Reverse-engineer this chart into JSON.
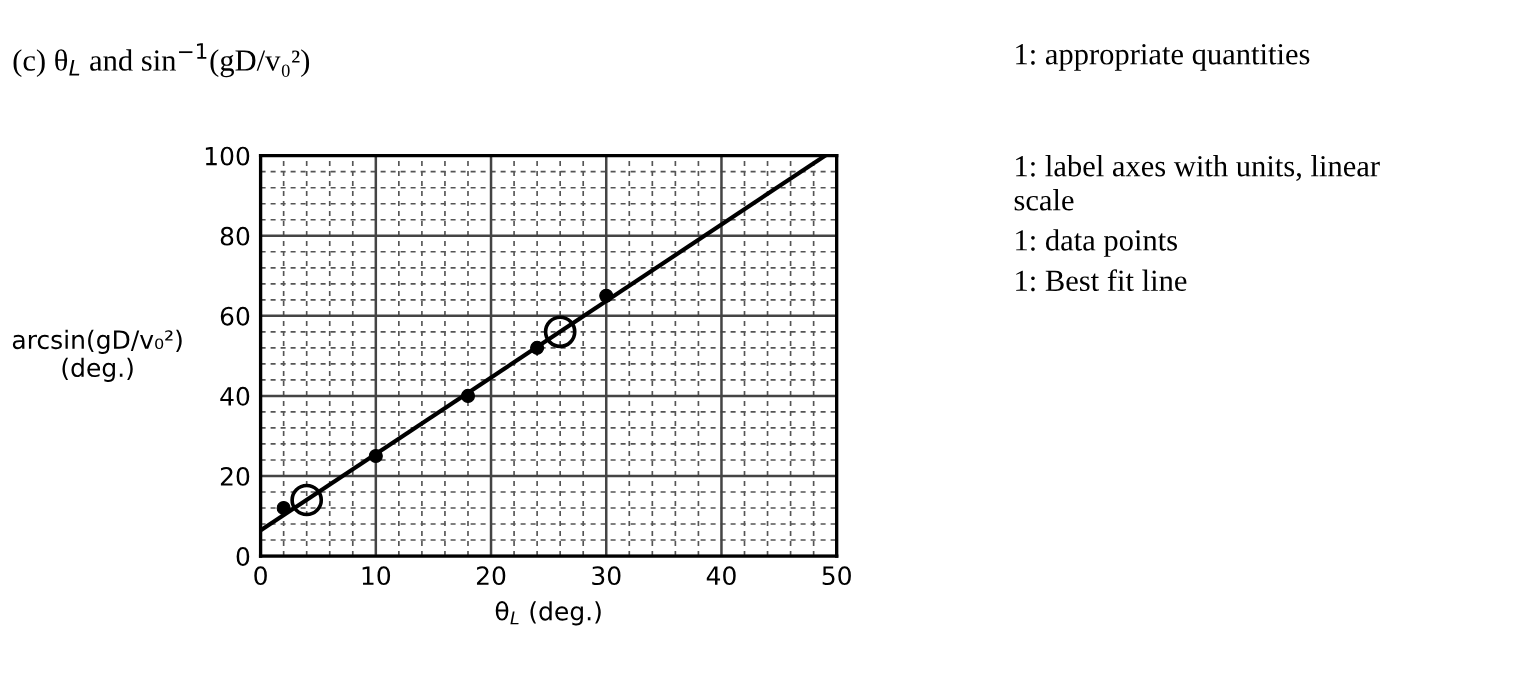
{
  "chart_data": {
    "type": "scatter",
    "title": "(c) θ$_{L}$ and sin$^{−1}$(gD/v₀²)",
    "xlabel": "θ$_{L}$ (deg.)",
    "ylabel": "arcsin(gD/v₀²)\n(deg.)",
    "annotations": [
      "1: appropriate quantities",
      "1: label axes with units, linear\nscale",
      "1: data points",
      "1: Best fit line"
    ],
    "series": [
      {
        "color": "#000000",
        "marker": "circle",
        "x": [
          2,
          10,
          18,
          24,
          30
        ],
        "values": [
          12,
          25,
          40,
          52,
          65
        ]
      },
      {
        "type": "bubble",
        "color": "#000000",
        "marker": "circle",
        "x": [
          4,
          26
        ],
        "values": [
          14,
          56
        ],
        "sizes": [
          1,
          1
        ]
      },
      {
        "type": "line",
        "color": "#000000",
        "marker": "none",
        "x": [
          0,
          49
        ],
        "values": [
          6.4,
          100
        ]
      }
    ],
    "xlim": [
      0,
      50
    ],
    "ylim": [
      0,
      100
    ],
    "xticks": [
      0,
      10,
      20,
      30,
      40,
      50
    ],
    "yticks": [
      0,
      20,
      40,
      60,
      80,
      100
    ],
    "grid": true,
    "line_style": "solid"
  }
}
